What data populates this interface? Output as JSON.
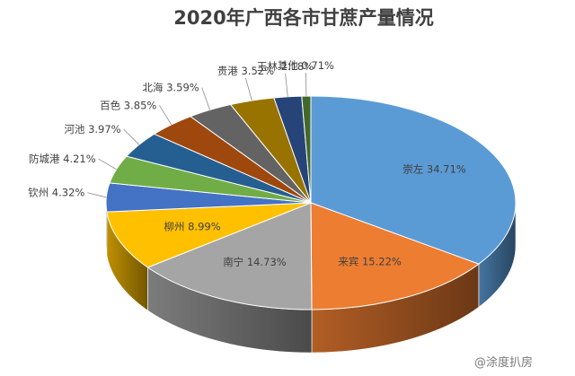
{
  "chart_data": {
    "type": "pie",
    "title": "2020年广西各市甘蔗产量情况",
    "slices": [
      {
        "name": "崇左",
        "value": 34.71,
        "label": "崇左 34.71%",
        "color": "#5B9BD5"
      },
      {
        "name": "来宾",
        "value": 15.22,
        "label": "来宾 15.22%",
        "color": "#ED7D31"
      },
      {
        "name": "南宁",
        "value": 14.73,
        "label": "南宁 14.73%",
        "color": "#A5A5A5"
      },
      {
        "name": "柳州",
        "value": 8.99,
        "label": "柳州 8.99%",
        "color": "#FFC000"
      },
      {
        "name": "钦州",
        "value": 4.32,
        "label": "钦州 4.32%",
        "color": "#4472C4"
      },
      {
        "name": "防城港",
        "value": 4.21,
        "label": "防城港 4.21%",
        "color": "#70AD47"
      },
      {
        "name": "河池",
        "value": 3.97,
        "label": "河池 3.97%",
        "color": "#255E91"
      },
      {
        "name": "百色",
        "value": 3.85,
        "label": "百色 3.85%",
        "color": "#9E480E"
      },
      {
        "name": "北海",
        "value": 3.59,
        "label": "北海 3.59%",
        "color": "#636363"
      },
      {
        "name": "贵港",
        "value": 3.52,
        "label": "贵港 3.52%",
        "color": "#997300"
      },
      {
        "name": "玉林",
        "value": 2.18,
        "label": "玉林 2.18%",
        "color": "#264478"
      },
      {
        "name": "其他",
        "value": 0.71,
        "label": "其他 0.71%",
        "color": "#43682B"
      }
    ]
  },
  "watermark": {
    "text": "@涂度扒房",
    "extra": "扒房"
  }
}
